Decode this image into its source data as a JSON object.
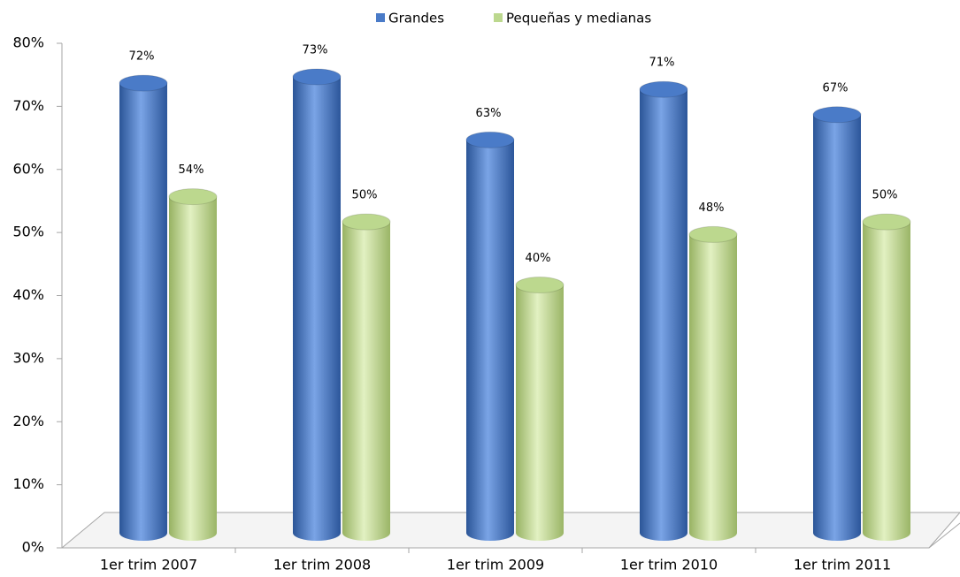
{
  "chart_data": {
    "type": "bar",
    "categories": [
      "1er trim 2007",
      "1er trim 2008",
      "1er trim 2009",
      "1er trim 2010",
      "1er trim 2011"
    ],
    "series": [
      {
        "name": "Grandes",
        "color": "#4a7bc8",
        "values": [
          72,
          73,
          63,
          71,
          67
        ],
        "value_labels": [
          "72%",
          "73%",
          "63%",
          "71%",
          "67%"
        ]
      },
      {
        "name": "Pequeñas y medianas",
        "color": "#bcd88e",
        "values": [
          54,
          50,
          40,
          48,
          50
        ],
        "value_labels": [
          "54%",
          "50%",
          "40%",
          "48%",
          "50%"
        ]
      }
    ],
    "ylim": [
      0,
      80
    ],
    "yticks": [
      {
        "value": 0,
        "label": "0%"
      },
      {
        "value": 10,
        "label": "10%"
      },
      {
        "value": 20,
        "label": "20%"
      },
      {
        "value": 30,
        "label": "30%"
      },
      {
        "value": 40,
        "label": "40%"
      },
      {
        "value": 50,
        "label": "50%"
      },
      {
        "value": 60,
        "label": "60%"
      },
      {
        "value": 70,
        "label": "70%"
      },
      {
        "value": 80,
        "label": "80%"
      }
    ],
    "legend": "top"
  }
}
